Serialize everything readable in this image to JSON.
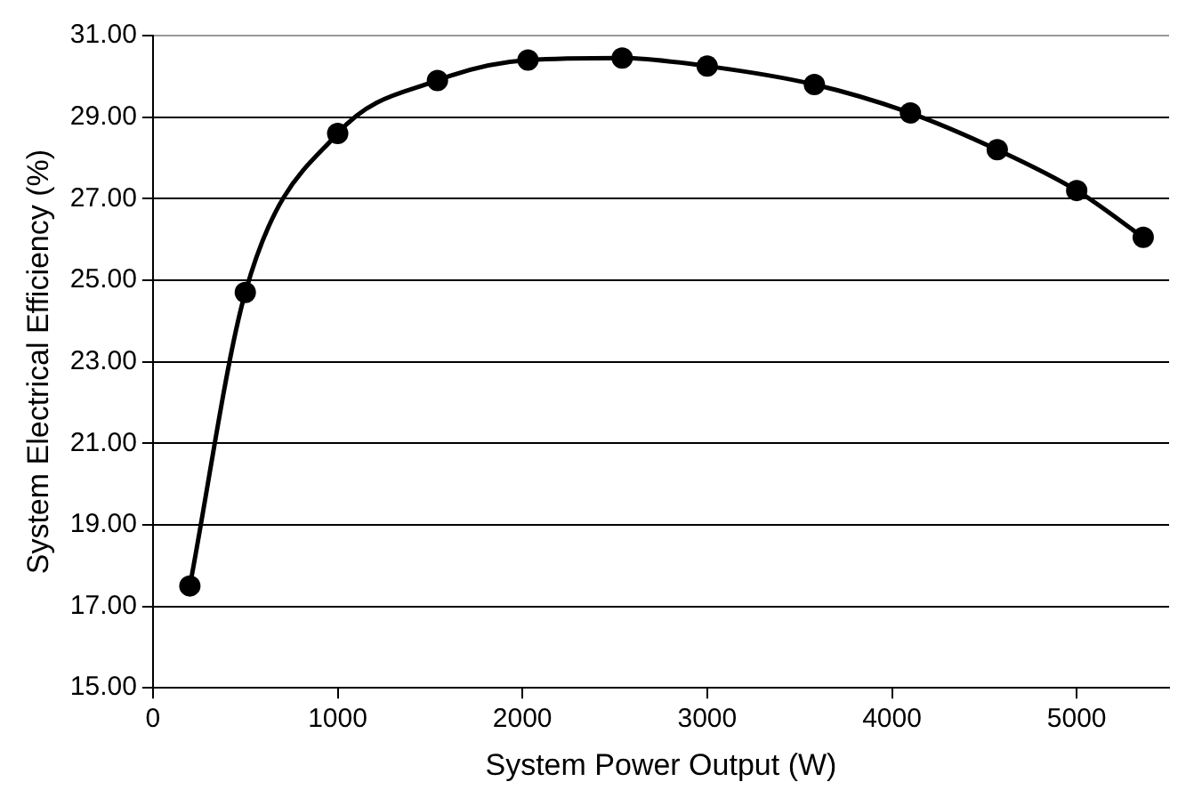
{
  "chart_data": {
    "type": "line",
    "xlabel": "System Power Output (W)",
    "ylabel": "System Electrical Efficiency (%)",
    "x": [
      200,
      500,
      1000,
      1540,
      2030,
      2540,
      3000,
      3580,
      4100,
      4570,
      5000,
      5360
    ],
    "series": [
      {
        "color": "#000000",
        "values": [
          17.5,
          24.7,
          28.6,
          29.9,
          30.4,
          30.45,
          30.25,
          29.8,
          29.1,
          28.2,
          27.2,
          26.05
        ]
      }
    ],
    "xlim": [
      0,
      5500
    ],
    "xticks": [
      0,
      1000,
      2000,
      3000,
      4000,
      5000
    ],
    "ylim": [
      15,
      31
    ],
    "yticks": [
      {
        "value": 15,
        "label": "15.00"
      },
      {
        "value": 17,
        "label": "17.00"
      },
      {
        "value": 19,
        "label": "19.00"
      },
      {
        "value": 21,
        "label": "21.00"
      },
      {
        "value": 23,
        "label": "23.00"
      },
      {
        "value": 25,
        "label": "25.00"
      },
      {
        "value": 27,
        "label": "27.00"
      },
      {
        "value": 29,
        "label": "29.00"
      },
      {
        "value": 31,
        "label": "31.00"
      }
    ],
    "grid": "y",
    "marker": "circle",
    "line_style": "solid",
    "legend": false
  }
}
